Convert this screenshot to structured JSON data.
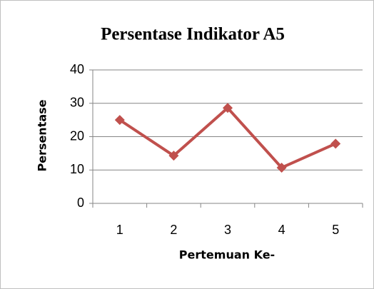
{
  "chart_data": {
    "type": "line",
    "title": "Persentase Indikator A5",
    "x_label": "Pertemuan Ke-",
    "y_label": "Persentase",
    "categories": [
      "1",
      "2",
      "3",
      "4",
      "5"
    ],
    "series": [
      {
        "name": "Persentase",
        "color": "#c0504d",
        "values": [
          25,
          14.3,
          28.6,
          10.7,
          17.9
        ]
      }
    ],
    "ylim": [
      0,
      40
    ],
    "yticks": [
      0,
      10,
      20,
      30,
      40
    ],
    "grid": true
  }
}
